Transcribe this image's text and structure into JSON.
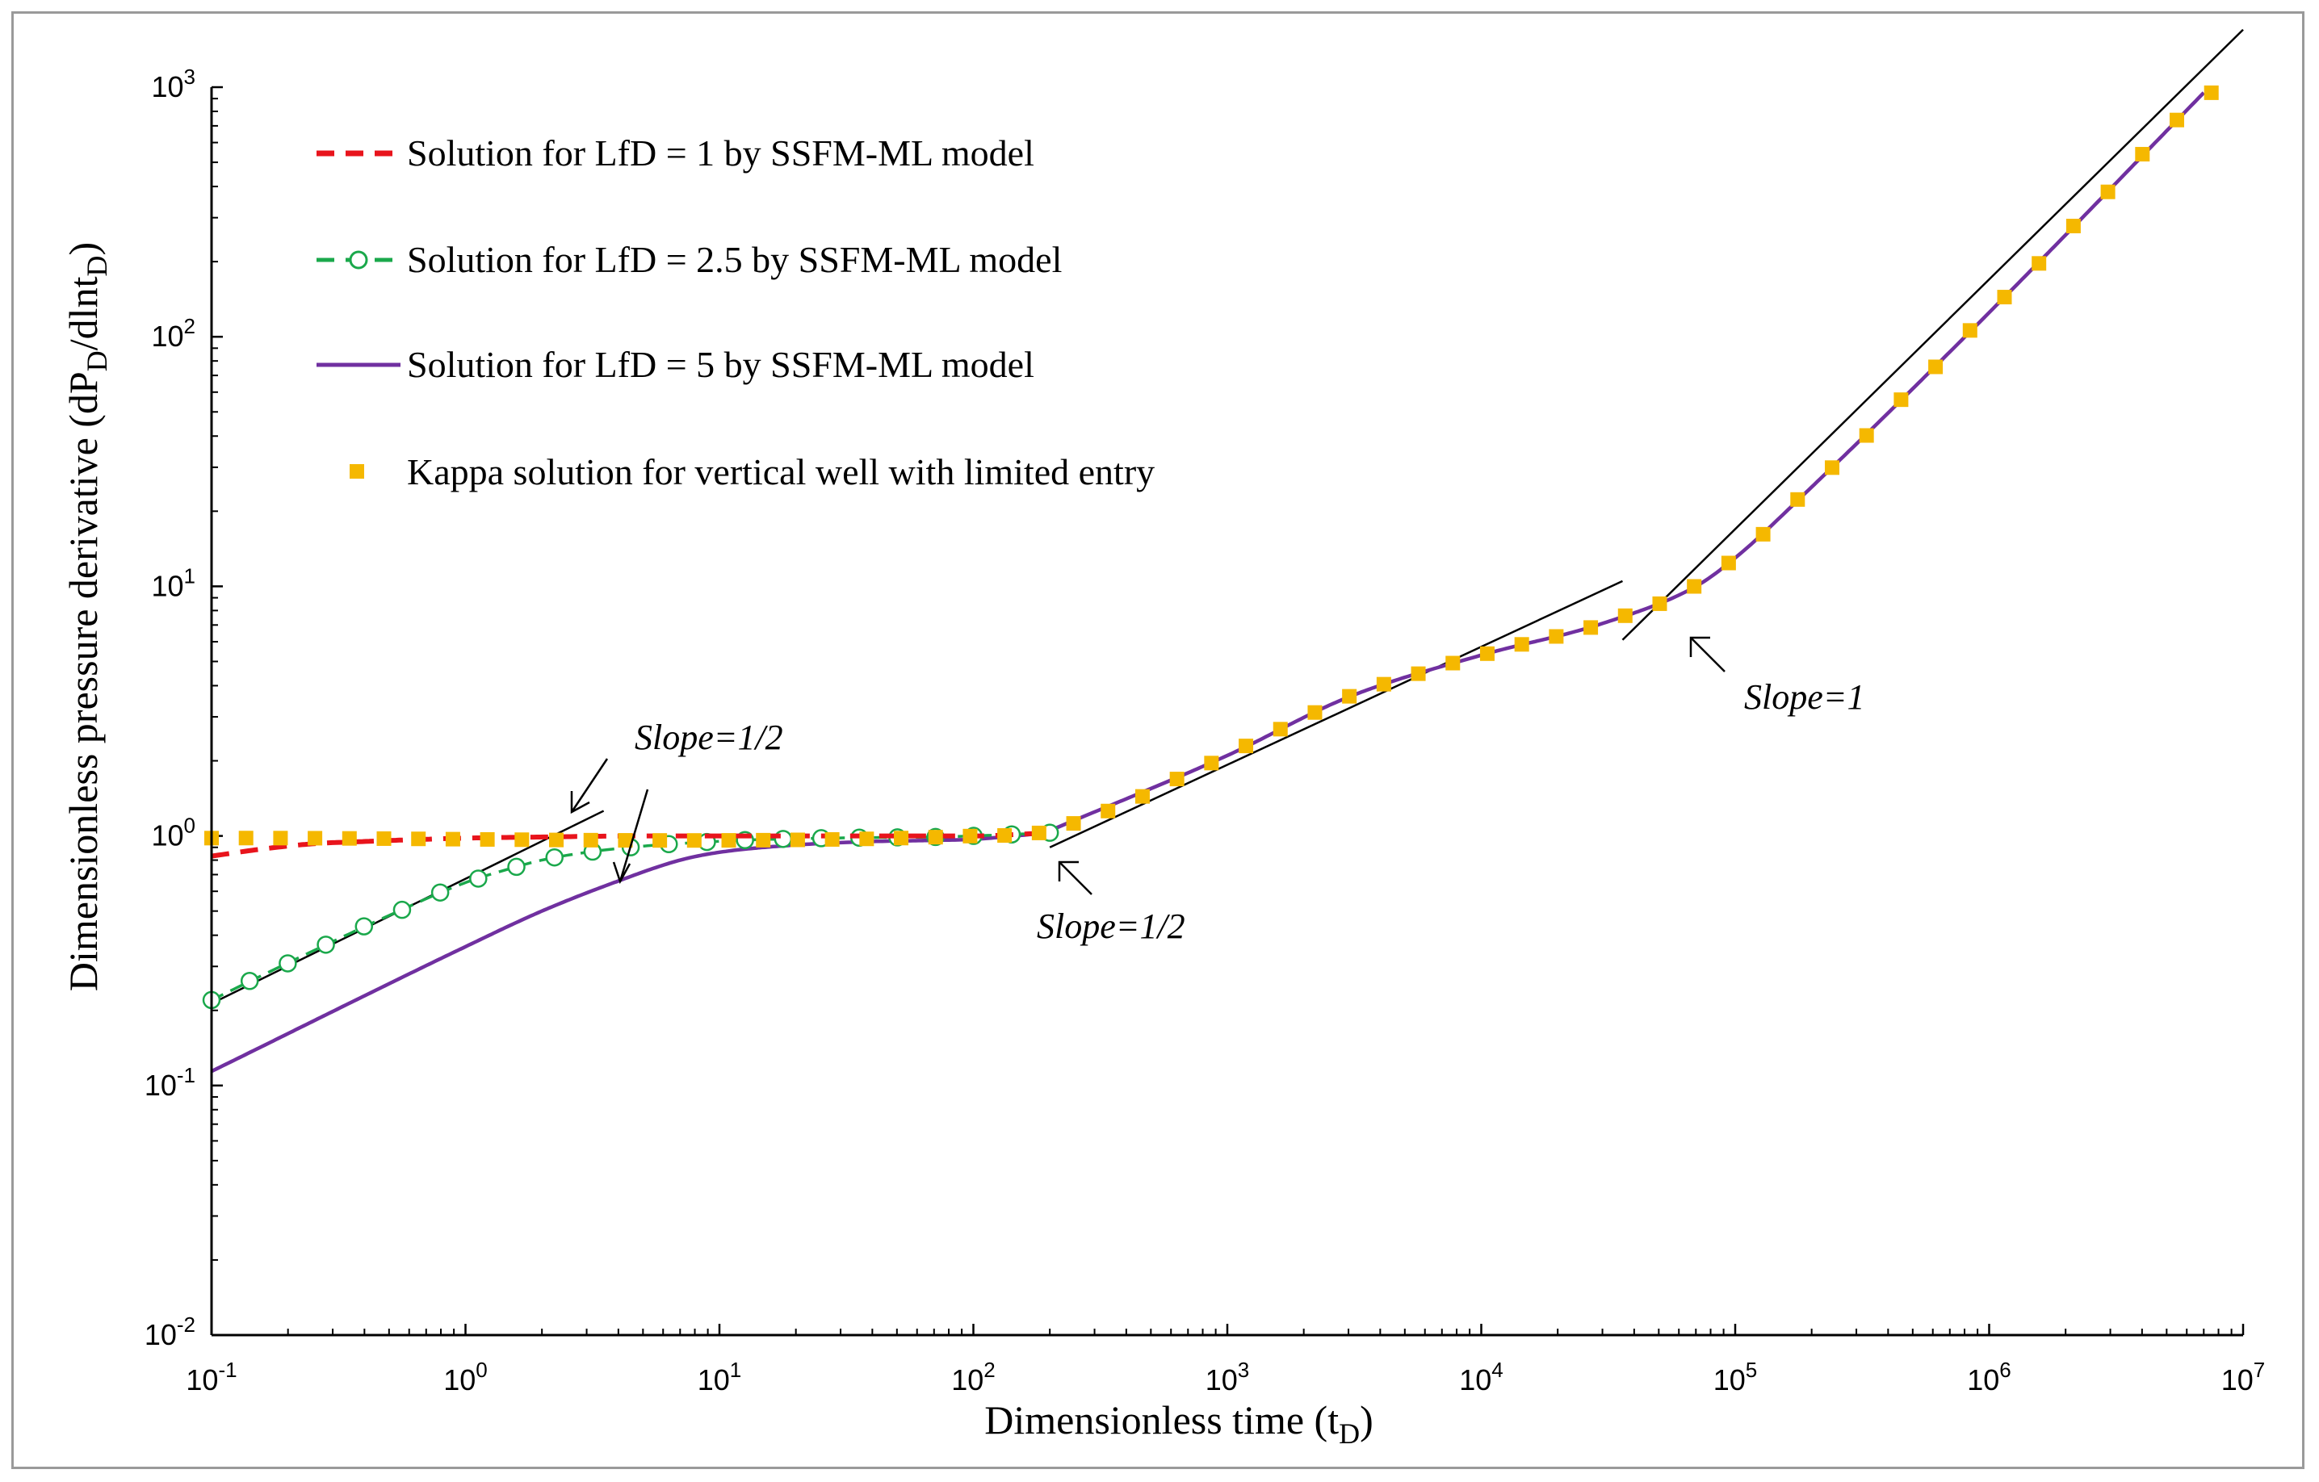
{
  "chart_data": {
    "type": "line",
    "xscale": "log",
    "yscale": "log",
    "xlim": [
      0.1,
      10000000
    ],
    "ylim": [
      0.01,
      1000
    ],
    "xlabel": "Dimensionless time (t",
    "xlabel_sub": "D",
    "xlabel_end": ")",
    "ylabel": "Dimensionless pressure derivative (dP",
    "ylabel_sub1": "D",
    "ylabel_mid": "/dlnt",
    "ylabel_sub2": "D",
    "ylabel_end": ")",
    "x_ticks": [
      {
        "base": "10",
        "exp": "-1",
        "value": 0.1
      },
      {
        "base": "10",
        "exp": "0",
        "value": 1
      },
      {
        "base": "10",
        "exp": "1",
        "value": 10
      },
      {
        "base": "10",
        "exp": "2",
        "value": 100
      },
      {
        "base": "10",
        "exp": "3",
        "value": 1000
      },
      {
        "base": "10",
        "exp": "4",
        "value": 10000
      },
      {
        "base": "10",
        "exp": "5",
        "value": 100000
      },
      {
        "base": "10",
        "exp": "6",
        "value": 1000000
      },
      {
        "base": "10",
        "exp": "7",
        "value": 10000000
      }
    ],
    "y_ticks": [
      {
        "base": "10",
        "exp": "-2",
        "value": 0.01
      },
      {
        "base": "10",
        "exp": "-1",
        "value": 0.1
      },
      {
        "base": "10",
        "exp": "0",
        "value": 1
      },
      {
        "base": "10",
        "exp": "1",
        "value": 10
      },
      {
        "base": "10",
        "exp": "2",
        "value": 100
      },
      {
        "base": "10",
        "exp": "3",
        "value": 1000
      }
    ],
    "legend_position": "top-left",
    "series": [
      {
        "name": "Solution for LfD = 1 by SSFM-ML model",
        "style": "dashed",
        "color": "#e8141c",
        "x": [
          0.1,
          0.15,
          0.25,
          0.4,
          0.7,
          1,
          2,
          5,
          10,
          30,
          100,
          200
        ],
        "y": [
          0.83,
          0.88,
          0.93,
          0.95,
          0.97,
          0.98,
          0.99,
          1.0,
          1.0,
          1.0,
          1.0,
          1.03
        ]
      },
      {
        "name": "Solution for LfD = 2.5 by SSFM-ML model",
        "style": "dash-circle",
        "color": "#1aa84b",
        "x": [
          0.1,
          0.2,
          0.5,
          1,
          1.5,
          2,
          3,
          5,
          8,
          12,
          20,
          40,
          70,
          100,
          200
        ],
        "y": [
          0.22,
          0.31,
          0.48,
          0.65,
          0.74,
          0.8,
          0.86,
          0.91,
          0.94,
          0.96,
          0.975,
          0.985,
          0.99,
          1.0,
          1.03
        ]
      },
      {
        "name": "Solution for LfD = 5 by SSFM-ML model",
        "style": "solid",
        "color": "#7030a0",
        "x": [
          0.1,
          1,
          2,
          4,
          7,
          10,
          20,
          40,
          70,
          100,
          200
        ],
        "y": [
          0.114,
          0.36,
          0.5,
          0.66,
          0.8,
          0.86,
          0.92,
          0.95,
          0.96,
          0.97,
          1.03
        ]
      },
      {
        "name": "Kappa solution for vertical well with limited entry",
        "style": "square-markers",
        "color": "#f5b800",
        "x": [
          0.1,
          100,
          200,
          1000,
          3000,
          10000,
          30000,
          70000,
          100000,
          200000,
          1000000,
          7000000
        ],
        "y": [
          0.98,
          1.0,
          1.05,
          2.1,
          3.6,
          5.3,
          7.1,
          10.0,
          13.0,
          25.0,
          125,
          950
        ]
      }
    ],
    "annotations": [
      {
        "text": "Slope=1/2"
      },
      {
        "text": "Slope=1/2"
      },
      {
        "text": "Slope=1"
      }
    ]
  }
}
